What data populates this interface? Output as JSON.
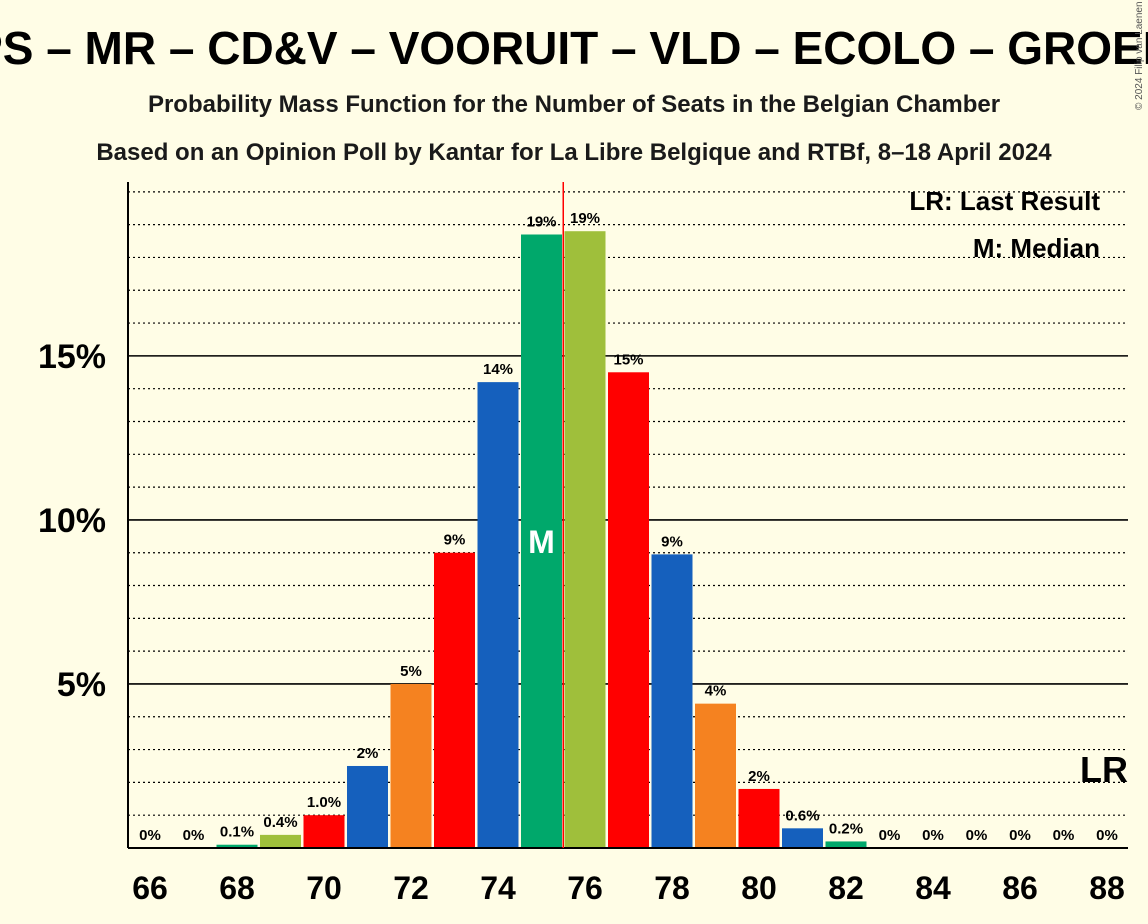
{
  "chart_data": {
    "type": "bar",
    "title": "PS – MR – CD&V – VOORUIT – VLD – ECOLO – GROEN",
    "subtitle": "Probability Mass Function for the Number of Seats in the Belgian Chamber",
    "subtitle2": "Based on an Opinion Poll by Kantar for La Libre Belgique and RTBf, 8–18 April 2024",
    "copyright": "© 2024 Filip van Laenen",
    "legend": {
      "lr": "LR: Last Result",
      "m": "M: Median"
    },
    "last_result_label": "LR",
    "median_label": "M",
    "median_seat": 75,
    "last_result_line_x": 75.5,
    "last_result_label_seat": 88,
    "categories": [
      66,
      67,
      68,
      69,
      70,
      71,
      72,
      73,
      74,
      75,
      76,
      77,
      78,
      79,
      80,
      81,
      82,
      83,
      84,
      85,
      86,
      87,
      88
    ],
    "values": [
      0,
      0,
      0.1,
      0.4,
      1.0,
      2.5,
      5.0,
      9.0,
      14.2,
      18.7,
      18.8,
      14.5,
      8.95,
      4.4,
      1.8,
      0.6,
      0.2,
      0,
      0,
      0,
      0,
      0,
      0
    ],
    "value_labels": [
      "0%",
      "0%",
      "0.1%",
      "0.4%",
      "1.0%",
      "2%",
      "5%",
      "9%",
      "14%",
      "19%",
      "19%",
      "15%",
      "9%",
      "4%",
      "2%",
      "0.6%",
      "0.2%",
      "0%",
      "0%",
      "0%",
      "0%",
      "0%",
      "0%"
    ],
    "bar_colors": [
      "#ed1c24",
      "#ed1c24",
      "#00a86b",
      "#9fbf3b",
      "#ff0000",
      "#1560bd",
      "#f58220",
      "#ff0000",
      "#1560bd",
      "#00a86b",
      "#9fbf3b",
      "#ff0000",
      "#1560bd",
      "#f58220",
      "#ff0000",
      "#1560bd",
      "#00a86b",
      "#9fbf3b",
      "#ff0000",
      "#1560bd",
      "#f58220",
      "#ff0000",
      "#1560bd"
    ],
    "x_tick_labels": [
      "66",
      "68",
      "70",
      "72",
      "74",
      "76",
      "78",
      "80",
      "82",
      "84",
      "86",
      "88"
    ],
    "y_ticks": [
      5,
      10,
      15
    ],
    "y_tick_labels": [
      "5%",
      "10%",
      "15%"
    ],
    "ylim": [
      0,
      20.3
    ],
    "minor_grid_step": 1,
    "grid": true,
    "legend_position": "top-right",
    "last_result_color": "#ff0000"
  }
}
